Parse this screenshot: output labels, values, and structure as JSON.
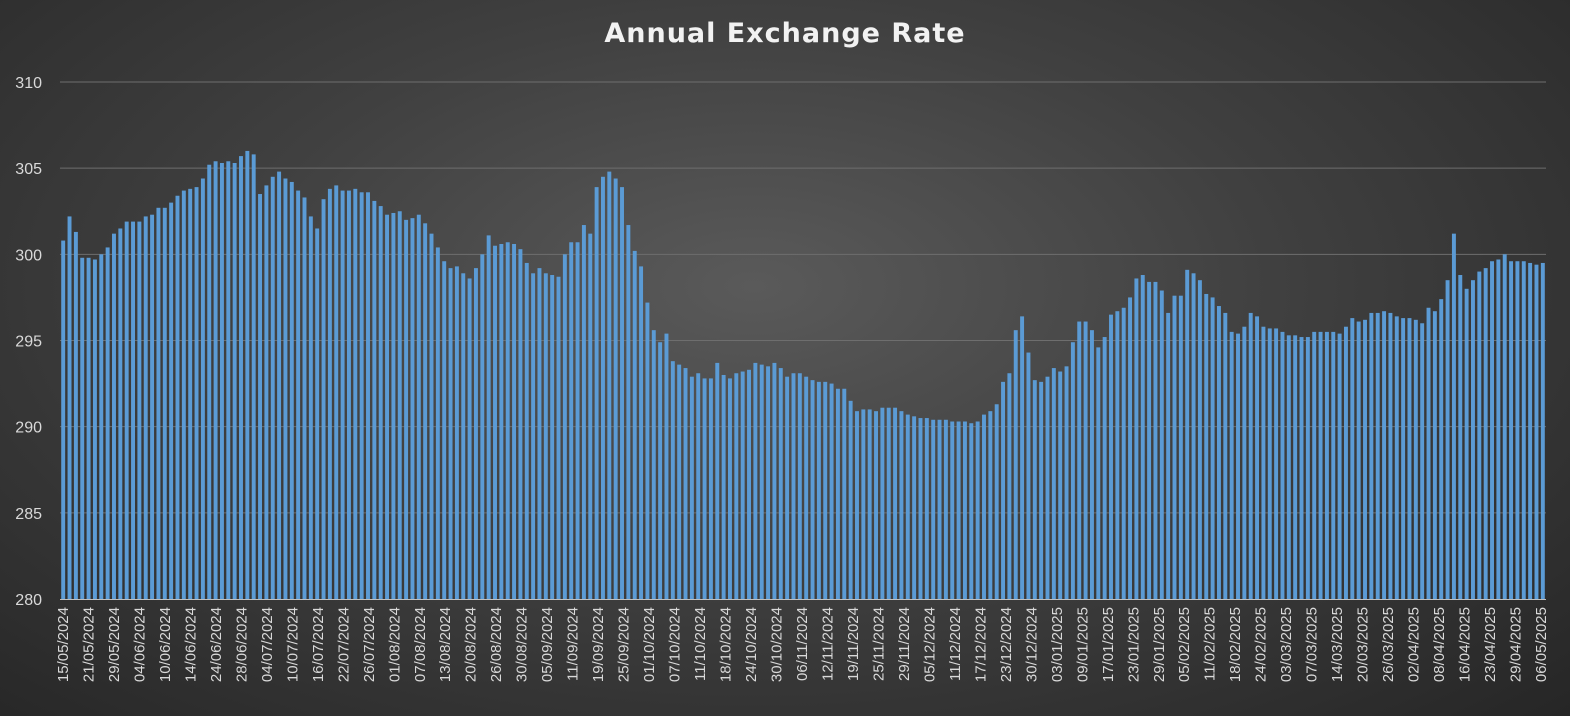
{
  "chart_data": {
    "type": "bar",
    "title": "Annual Exchange Rate",
    "xlabel": "",
    "ylabel": "",
    "ylim": [
      280,
      310
    ],
    "yticks": [
      280,
      285,
      290,
      295,
      300,
      305,
      310
    ],
    "grid": true,
    "legend": "none",
    "bar_color": "#5b9bd5",
    "x_tick_labels": [
      "15/05/2024",
      "21/05/2024",
      "29/05/2024",
      "04/06/2024",
      "10/06/2024",
      "14/06/2024",
      "24/06/2024",
      "28/06/2024",
      "04/07/2024",
      "10/07/2024",
      "16/07/2024",
      "22/07/2024",
      "26/07/2024",
      "01/08/2024",
      "07/08/2024",
      "13/08/2024",
      "20/08/2024",
      "26/08/2024",
      "30/08/2024",
      "05/09/2024",
      "11/09/2024",
      "19/09/2024",
      "25/09/2024",
      "01/10/2024",
      "07/10/2024",
      "11/10/2024",
      "18/10/2024",
      "24/10/2024",
      "30/10/2024",
      "06/11/2024",
      "12/11/2024",
      "19/11/2024",
      "25/11/2024",
      "29/11/2024",
      "05/12/2024",
      "11/12/2024",
      "17/12/2024",
      "23/12/2024",
      "30/12/2024",
      "03/01/2025",
      "09/01/2025",
      "17/01/2025",
      "23/01/2025",
      "29/01/2025",
      "05/02/2025",
      "11/02/2025",
      "18/02/2025",
      "24/02/2025",
      "03/03/2025",
      "07/03/2025",
      "14/03/2025",
      "20/03/2025",
      "26/03/2025",
      "02/04/2025",
      "08/04/2025",
      "16/04/2025",
      "23/04/2025",
      "29/04/2025",
      "06/05/2025"
    ],
    "values": [
      300.8,
      302.2,
      301.3,
      299.8,
      299.8,
      299.7,
      300.0,
      300.4,
      301.2,
      301.5,
      301.9,
      301.9,
      301.9,
      302.2,
      302.3,
      302.7,
      302.7,
      303.0,
      303.4,
      303.7,
      303.8,
      303.9,
      304.4,
      305.2,
      305.4,
      305.3,
      305.4,
      305.3,
      305.7,
      306.0,
      305.8,
      303.5,
      304.0,
      304.5,
      304.8,
      304.4,
      304.2,
      303.7,
      303.3,
      302.2,
      301.5,
      303.2,
      303.8,
      304.0,
      303.7,
      303.7,
      303.8,
      303.6,
      303.6,
      303.1,
      302.8,
      302.3,
      302.4,
      302.5,
      302.0,
      302.1,
      302.3,
      301.8,
      301.2,
      300.4,
      299.6,
      299.2,
      299.3,
      298.9,
      298.6,
      299.2,
      300.0,
      301.1,
      300.5,
      300.6,
      300.7,
      300.6,
      300.3,
      299.5,
      298.9,
      299.2,
      298.9,
      298.8,
      298.7,
      300.0,
      300.7,
      300.7,
      301.7,
      301.2,
      303.9,
      304.5,
      304.8,
      304.4,
      303.9,
      301.7,
      300.2,
      299.3,
      297.2,
      295.6,
      294.9,
      295.4,
      293.8,
      293.6,
      293.4,
      292.9,
      293.1,
      292.8,
      292.8,
      293.7,
      293.0,
      292.8,
      293.1,
      293.2,
      293.3,
      293.7,
      293.6,
      293.5,
      293.7,
      293.4,
      292.9,
      293.1,
      293.1,
      292.9,
      292.7,
      292.6,
      292.6,
      292.5,
      292.2,
      292.2,
      291.5,
      290.9,
      291.0,
      291.0,
      290.9,
      291.1,
      291.1,
      291.1,
      290.9,
      290.7,
      290.6,
      290.5,
      290.5,
      290.4,
      290.4,
      290.4,
      290.3,
      290.3,
      290.3,
      290.2,
      290.3,
      290.7,
      290.9,
      291.3,
      292.6,
      293.1,
      295.6,
      296.4,
      294.3,
      292.7,
      292.6,
      292.9,
      293.4,
      293.2,
      293.5,
      294.9,
      296.1,
      296.1,
      295.6,
      294.6,
      295.2,
      296.5,
      296.7,
      296.9,
      297.5,
      298.6,
      298.8,
      298.4,
      298.4,
      297.9,
      296.6,
      297.6,
      297.6,
      299.1,
      298.9,
      298.5,
      297.7,
      297.5,
      297.0,
      296.6,
      295.5,
      295.4,
      295.8,
      296.6,
      296.4,
      295.8,
      295.7,
      295.7,
      295.5,
      295.3,
      295.3,
      295.2,
      295.2,
      295.5,
      295.5,
      295.5,
      295.5,
      295.4,
      295.8,
      296.3,
      296.1,
      296.2,
      296.6,
      296.6,
      296.7,
      296.6,
      296.4,
      296.3,
      296.3,
      296.2,
      296.0,
      296.9,
      296.7,
      297.4,
      298.5,
      301.2,
      298.8,
      298.0,
      298.5,
      299.0,
      299.2,
      299.6,
      299.7,
      300.0,
      299.6,
      299.6,
      299.6,
      299.5,
      299.4,
      299.5
    ]
  }
}
